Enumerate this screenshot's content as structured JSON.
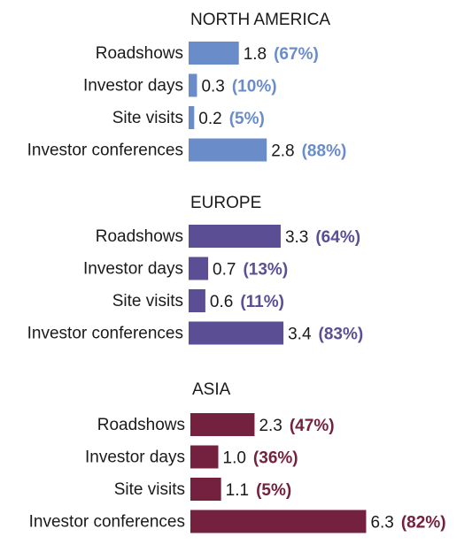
{
  "chart_data": [
    {
      "type": "bar",
      "orientation": "horizontal",
      "title": "NORTH AMERICA",
      "color": "#6a8cc9",
      "categories": [
        "Roadshows",
        "Investor days",
        "Site visits",
        "Investor conferences"
      ],
      "values": [
        1.8,
        0.3,
        0.2,
        2.8
      ],
      "value_labels": [
        "1.8",
        "0.3",
        "0.2",
        "2.8"
      ],
      "percent_labels": [
        "(67%)",
        "(10%)",
        "(5%)",
        "(88%)"
      ]
    },
    {
      "type": "bar",
      "orientation": "horizontal",
      "title": "EUROPE",
      "color": "#5b4e95",
      "categories": [
        "Roadshows",
        "Investor days",
        "Site visits",
        "Investor conferences"
      ],
      "values": [
        3.3,
        0.7,
        0.6,
        3.4
      ],
      "value_labels": [
        "3.3",
        "0.7",
        "0.6",
        "3.4"
      ],
      "percent_labels": [
        "(64%)",
        "(13%)",
        "(11%)",
        "(83%)"
      ]
    },
    {
      "type": "bar",
      "orientation": "horizontal",
      "title": "ASIA",
      "color": "#74213f",
      "categories": [
        "Roadshows",
        "Investor days",
        "Site visits",
        "Investor conferences"
      ],
      "values": [
        2.3,
        1.0,
        1.1,
        6.3
      ],
      "value_labels": [
        "2.3",
        "1.0",
        "1.1",
        "6.3"
      ],
      "percent_labels": [
        "(47%)",
        "(36%)",
        "(5%)",
        "(82%)"
      ]
    }
  ]
}
